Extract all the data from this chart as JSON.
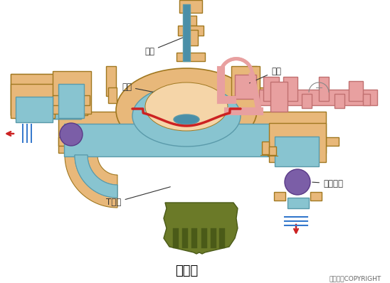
{
  "title": "隔膜泵",
  "copyright": "东方仿真COPYRIGHT",
  "bg_color": "#ffffff",
  "tan_body": "#E8B87A",
  "tan_edge": "#A07820",
  "blue_fluid": "#88C4D0",
  "blue_dark": "#5A9AAA",
  "blue_center": "#4A8FA8",
  "purple": "#7B5EA7",
  "purple_edge": "#5A3A87",
  "pink": "#E8A0A0",
  "pink_dark": "#C07070",
  "red": "#CC2222",
  "olive": "#6B7A28",
  "olive_edge": "#4A5A18",
  "blue_line": "#3377CC",
  "peach_inner": "#F5D5A8",
  "label_气缸": "气缸",
  "label_泵体": "泵体",
  "label_隔膜": "隔膜",
  "label_单向球阀": "单向球阀",
  "label_T型管": "T型管",
  "title_fontsize": 13,
  "label_fontsize": 8.5
}
